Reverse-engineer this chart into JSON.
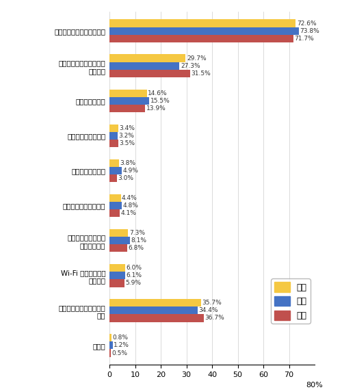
{
  "categories": [
    "パソコンがあれば良いから",
    "スマートフォンがあれば\n良いから",
    "価格が高いから",
    "サイズが大きいから",
    "画面が小さいから",
    "操作性が悪そうだから",
    "バッテリーの持ちが\n悪そうだから",
    "Wi-Fi などの環境が\nないから",
    "自分に必要だと思わない\nから",
    "その他"
  ],
  "zentai": [
    72.6,
    29.7,
    14.6,
    3.4,
    3.8,
    4.4,
    7.3,
    6.0,
    35.7,
    0.8
  ],
  "dansei": [
    73.8,
    27.3,
    15.5,
    3.2,
    4.9,
    4.8,
    8.1,
    6.1,
    34.4,
    1.2
  ],
  "josei": [
    71.7,
    31.5,
    13.9,
    3.5,
    3.0,
    4.1,
    6.8,
    5.9,
    36.7,
    0.5
  ],
  "color_zentai": "#F5C842",
  "color_dansei": "#4472C4",
  "color_josei": "#C0504D",
  "bar_height": 0.22,
  "label_fontsize": 7.5,
  "value_fontsize": 6.5,
  "tick_fontsize": 8,
  "legend_labels": [
    "全体",
    "男性",
    "女性"
  ],
  "background_color": "#ffffff"
}
